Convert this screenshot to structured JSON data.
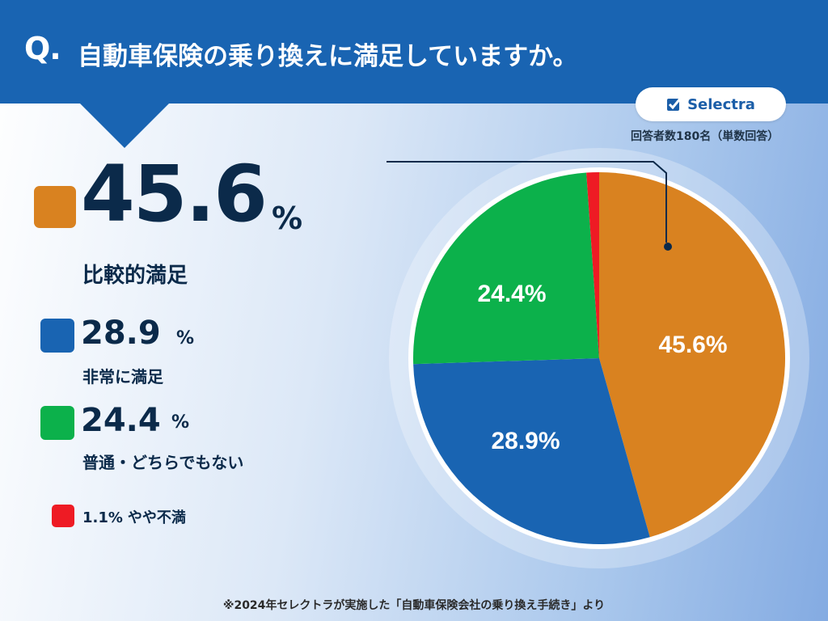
{
  "header": {
    "q_label": "Q.",
    "question": "自動車保険の乗り換えに満足していますか。"
  },
  "brand": {
    "logo_text": "Selectra"
  },
  "sample_note": "回答者数180名（単数回答）",
  "legend": {
    "primary": {
      "value": "45.6",
      "percent_sign": "%",
      "label": "比較的満足"
    },
    "second": {
      "value": "28.9",
      "percent_sign": "%",
      "label": "非常に満足"
    },
    "third": {
      "value": "24.4",
      "percent_sign": "%",
      "label": "普通・どちらでもない"
    },
    "fourth": {
      "value_text": "1.1%",
      "label": "やや不満"
    }
  },
  "colors": {
    "header": "#1964b2",
    "orange": "#d98220",
    "blue": "#1964b2",
    "green": "#0cb14b",
    "red": "#ee1b24",
    "text_dark": "#0b2a4a"
  },
  "chart_data": {
    "type": "pie",
    "start_angle_deg": 0,
    "direction": "clockwise",
    "slices": [
      {
        "label": "比較的満足",
        "value": 45.6,
        "display": "45.6%",
        "color": "#d98220"
      },
      {
        "label": "非常に満足",
        "value": 28.9,
        "display": "28.9%",
        "color": "#1964b2"
      },
      {
        "label": "普通・どちらでもない",
        "value": 24.4,
        "display": "24.4%",
        "color": "#0cb14b"
      },
      {
        "label": "やや不満",
        "value": 1.1,
        "display": "",
        "color": "#ee1b24"
      }
    ]
  },
  "footer": "※2024年セレクトラが実施した「自動車保険会社の乗り換え手続き」より"
}
